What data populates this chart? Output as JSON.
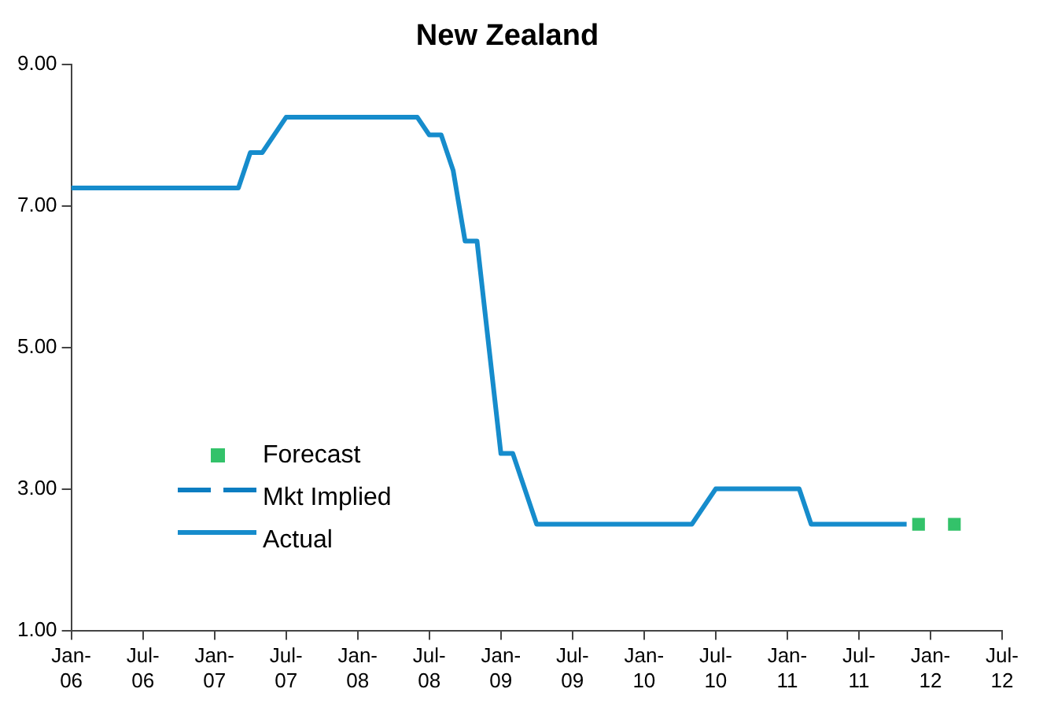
{
  "chart_data": {
    "type": "line",
    "title": "New Zealand",
    "series": [
      {
        "name": "Forecast",
        "type": "scatter",
        "color": "#33c26a",
        "marker": "square",
        "x": [
          "2011-12",
          "2012-03"
        ],
        "values": [
          2.5,
          2.5
        ]
      },
      {
        "name": "Mkt Implied",
        "color": "#0b7dc1",
        "line_style": "dashed"
      },
      {
        "name": "Actual",
        "color": "#168ccc",
        "line_style": "solid",
        "x": [
          "2006-01",
          "2007-03",
          "2007-04",
          "2007-05",
          "2007-07",
          "2008-06",
          "2008-07",
          "2008-08",
          "2008-09",
          "2008-10",
          "2008-11",
          "2009-01",
          "2009-02",
          "2009-04",
          "2010-05",
          "2010-07",
          "2011-02",
          "2011-03",
          "2011-11"
        ],
        "values": [
          7.25,
          7.25,
          7.75,
          7.75,
          8.25,
          8.25,
          8.0,
          8.0,
          7.5,
          6.5,
          6.5,
          3.5,
          3.5,
          2.5,
          2.5,
          3.0,
          3.0,
          2.5,
          2.5
        ]
      }
    ],
    "xlim": [
      "2006-01",
      "2012-07"
    ],
    "xticks": [
      {
        "value": "2006-01",
        "label": "Jan-\n06"
      },
      {
        "value": "2006-07",
        "label": "Jul-\n06"
      },
      {
        "value": "2007-01",
        "label": "Jan-\n07"
      },
      {
        "value": "2007-07",
        "label": "Jul-\n07"
      },
      {
        "value": "2008-01",
        "label": "Jan-\n08"
      },
      {
        "value": "2008-07",
        "label": "Jul-\n08"
      },
      {
        "value": "2009-01",
        "label": "Jan-\n09"
      },
      {
        "value": "2009-07",
        "label": "Jul-\n09"
      },
      {
        "value": "2010-01",
        "label": "Jan-\n10"
      },
      {
        "value": "2010-07",
        "label": "Jul-\n10"
      },
      {
        "value": "2011-01",
        "label": "Jan-\n11"
      },
      {
        "value": "2011-07",
        "label": "Jul-\n11"
      },
      {
        "value": "2012-01",
        "label": "Jan-\n12"
      },
      {
        "value": "2012-07",
        "label": "Jul-\n12"
      }
    ],
    "ylim": [
      1,
      9
    ],
    "yticks": [
      {
        "value": 1,
        "label": "1.00"
      },
      {
        "value": 3,
        "label": "3.00"
      },
      {
        "value": 5,
        "label": "5.00"
      },
      {
        "value": 7,
        "label": "7.00"
      },
      {
        "value": 9,
        "label": "9.00"
      }
    ],
    "grid": false,
    "legend": "bottom left"
  }
}
